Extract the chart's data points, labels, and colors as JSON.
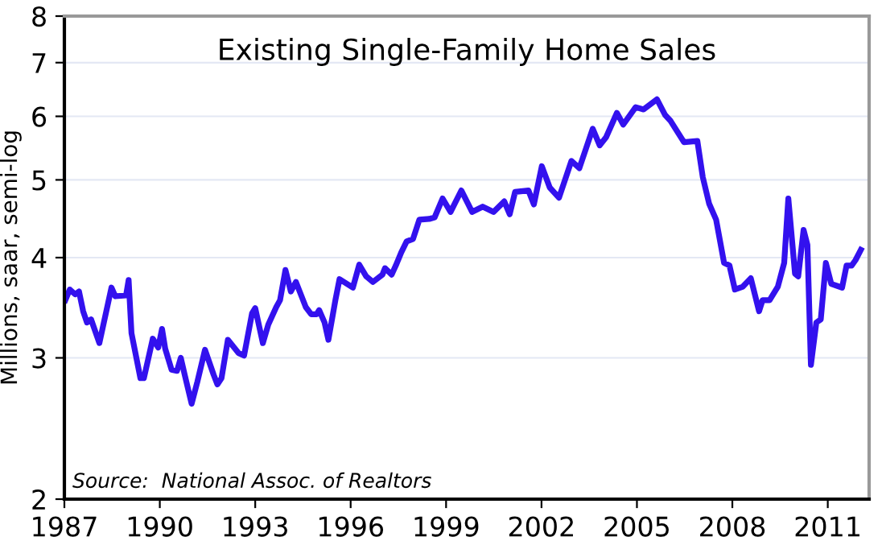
{
  "chart_data": {
    "type": "line",
    "title": "Existing Single-Family Home Sales",
    "ylabel": "Millions, saar, semi-log",
    "annotations": [
      "Source:  National Assoc. of Realtors"
    ],
    "log": "y",
    "grid": "y",
    "legend": false,
    "marker": "none",
    "line_style": "solid",
    "xlim": [
      1987,
      2012.3
    ],
    "xticks": [
      1987,
      1990,
      1993,
      1996,
      1999,
      2002,
      2005,
      2008,
      2011
    ],
    "ylim": [
      2,
      8
    ],
    "yticks": [
      2,
      3,
      4,
      5,
      6,
      7,
      8
    ],
    "x": [
      1987.03,
      1987.17,
      1987.34,
      1987.46,
      1987.59,
      1987.71,
      1987.84,
      1988.1,
      1988.48,
      1988.6,
      1988.94,
      1989.02,
      1989.11,
      1989.39,
      1989.5,
      1989.78,
      1989.95,
      1990.07,
      1990.17,
      1990.37,
      1990.54,
      1990.66,
      1990.79,
      1991.0,
      1991.18,
      1991.42,
      1991.69,
      1991.81,
      1991.94,
      1992.14,
      1992.48,
      1992.65,
      1992.9,
      1993.0,
      1993.24,
      1993.41,
      1993.66,
      1993.78,
      1993.95,
      1994.12,
      1994.28,
      1994.59,
      1994.76,
      1994.93,
      1995.01,
      1995.18,
      1995.3,
      1995.52,
      1995.65,
      1996.07,
      1996.27,
      1996.49,
      1996.7,
      1997.0,
      1997.08,
      1997.29,
      1997.42,
      1997.59,
      1997.76,
      1997.96,
      1998.16,
      1998.47,
      1998.64,
      1998.89,
      1999.14,
      1999.48,
      1999.82,
      2000.15,
      2000.49,
      2000.83,
      2001.0,
      2001.17,
      2001.59,
      2001.76,
      2002.01,
      2002.26,
      2002.55,
      2002.94,
      2003.19,
      2003.61,
      2003.83,
      2004.03,
      2004.37,
      2004.57,
      2004.96,
      2005.21,
      2005.63,
      2005.89,
      2006.06,
      2006.48,
      2006.9,
      2007.07,
      2007.27,
      2007.49,
      2007.74,
      2007.91,
      2008.08,
      2008.33,
      2008.58,
      2008.84,
      2008.95,
      2009.17,
      2009.43,
      2009.63,
      2009.76,
      2009.97,
      2010.07,
      2010.24,
      2010.36,
      2010.47,
      2010.64,
      2010.78,
      2010.94,
      2011.11,
      2011.45,
      2011.59,
      2011.75,
      2011.87,
      2012.04
    ],
    "series": [
      {
        "color": "#3311ee",
        "values": [
          3.54,
          3.65,
          3.6,
          3.63,
          3.43,
          3.32,
          3.35,
          3.13,
          3.67,
          3.58,
          3.59,
          3.75,
          3.22,
          2.83,
          2.83,
          3.17,
          3.09,
          3.26,
          3.08,
          2.9,
          2.89,
          3.0,
          2.85,
          2.63,
          2.8,
          3.07,
          2.86,
          2.78,
          2.83,
          3.16,
          3.04,
          3.02,
          3.41,
          3.46,
          3.13,
          3.3,
          3.47,
          3.54,
          3.86,
          3.63,
          3.73,
          3.47,
          3.4,
          3.4,
          3.44,
          3.32,
          3.16,
          3.54,
          3.76,
          3.67,
          3.92,
          3.79,
          3.73,
          3.81,
          3.88,
          3.81,
          3.91,
          4.06,
          4.19,
          4.22,
          4.46,
          4.47,
          4.49,
          4.74,
          4.56,
          4.85,
          4.56,
          4.63,
          4.56,
          4.7,
          4.53,
          4.83,
          4.85,
          4.66,
          5.2,
          4.89,
          4.75,
          5.28,
          5.17,
          5.79,
          5.52,
          5.65,
          6.06,
          5.86,
          6.16,
          6.12,
          6.3,
          6.02,
          5.92,
          5.57,
          5.59,
          5.04,
          4.67,
          4.46,
          3.94,
          3.91,
          3.65,
          3.68,
          3.77,
          3.43,
          3.54,
          3.54,
          3.68,
          3.94,
          4.74,
          3.82,
          3.79,
          4.33,
          4.15,
          2.94,
          3.32,
          3.35,
          3.94,
          3.71,
          3.67,
          3.91,
          3.91,
          3.97,
          4.09
        ]
      }
    ]
  }
}
